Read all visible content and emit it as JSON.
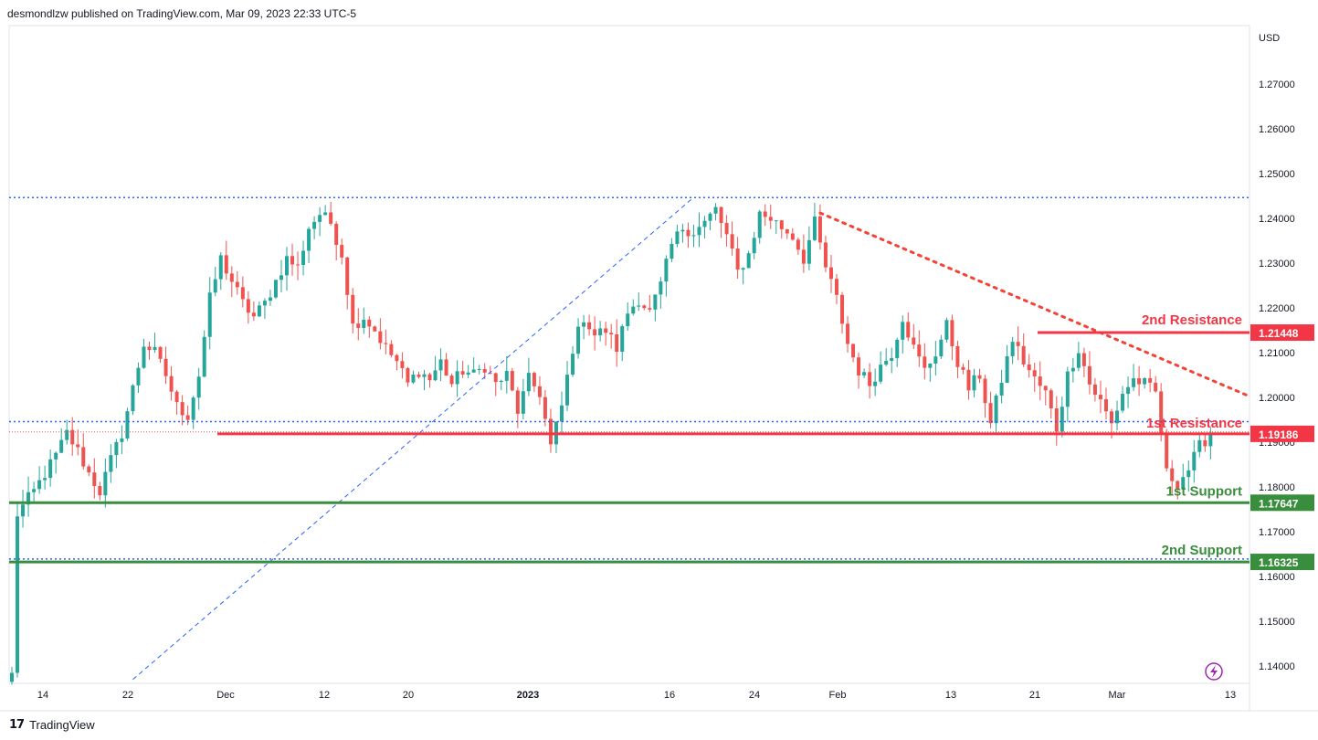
{
  "header": {
    "published_text": "desmondlzw published on TradingView.com, Mar 09, 2023 22:33 UTC-5"
  },
  "footer": {
    "brand": "TradingView",
    "logo_glyph": "17"
  },
  "icons": {
    "lightning": "lightning-bolt-icon"
  },
  "colors": {
    "up": "#26a69a",
    "down": "#ef5350",
    "resistance": "#f23645",
    "support": "#388e3c",
    "blue_dotted": "#2962ff",
    "red_trend": "#f44336"
  },
  "chart_data": {
    "type": "candlestick",
    "symbol_currency": "USD",
    "x_tick_labels": [
      "14",
      "22",
      "Dec",
      "12",
      "20",
      "2023",
      "16",
      "24",
      "Feb",
      "13",
      "21",
      "Mar",
      "13"
    ],
    "y_ticks": [
      1.27,
      1.26,
      1.25,
      1.24,
      1.23,
      1.22,
      1.21,
      1.2,
      1.19,
      1.18,
      1.17,
      1.16,
      1.15,
      1.14
    ],
    "y_tick_labels": [
      "1.27000",
      "1.26000",
      "1.25000",
      "1.24000",
      "1.23000",
      "1.22000",
      "1.21000",
      "1.20000",
      "1.19000",
      "1.18000",
      "1.17000",
      "1.16000",
      "1.15000",
      "1.14000"
    ],
    "ylim": [
      1.134,
      1.28
    ],
    "price_path": [
      [
        0,
        1.138
      ],
      [
        1,
        1.174
      ],
      [
        4,
        1.179
      ],
      [
        6,
        1.183
      ],
      [
        8,
        1.187
      ],
      [
        10,
        1.192
      ],
      [
        12,
        1.188
      ],
      [
        14,
        1.183
      ],
      [
        16,
        1.179
      ],
      [
        18,
        1.186
      ],
      [
        20,
        1.192
      ],
      [
        22,
        1.202
      ],
      [
        24,
        1.212
      ],
      [
        26,
        1.21
      ],
      [
        28,
        1.205
      ],
      [
        30,
        1.198
      ],
      [
        32,
        1.196
      ],
      [
        34,
        1.205
      ],
      [
        36,
        1.222
      ],
      [
        38,
        1.231
      ],
      [
        40,
        1.226
      ],
      [
        42,
        1.221
      ],
      [
        44,
        1.218
      ],
      [
        46,
        1.221
      ],
      [
        48,
        1.226
      ],
      [
        50,
        1.231
      ],
      [
        52,
        1.229
      ],
      [
        54,
        1.238
      ],
      [
        56,
        1.241
      ],
      [
        58,
        1.239
      ],
      [
        60,
        1.232
      ],
      [
        62,
        1.216
      ],
      [
        64,
        1.218
      ],
      [
        66,
        1.215
      ],
      [
        68,
        1.211
      ],
      [
        70,
        1.208
      ],
      [
        72,
        1.203
      ],
      [
        74,
        1.206
      ],
      [
        76,
        1.204
      ],
      [
        78,
        1.208
      ],
      [
        80,
        1.203
      ],
      [
        82,
        1.206
      ],
      [
        84,
        1.205
      ],
      [
        86,
        1.207
      ],
      [
        88,
        1.203
      ],
      [
        90,
        1.205
      ],
      [
        92,
        1.197
      ],
      [
        94,
        1.204
      ],
      [
        96,
        1.201
      ],
      [
        98,
        1.189
      ],
      [
        100,
        1.198
      ],
      [
        102,
        1.211
      ],
      [
        104,
        1.218
      ],
      [
        106,
        1.214
      ],
      [
        108,
        1.215
      ],
      [
        110,
        1.211
      ],
      [
        112,
        1.219
      ],
      [
        114,
        1.222
      ],
      [
        116,
        1.219
      ],
      [
        118,
        1.225
      ],
      [
        120,
        1.234
      ],
      [
        122,
        1.238
      ],
      [
        124,
        1.237
      ],
      [
        126,
        1.239
      ],
      [
        128,
        1.242
      ],
      [
        130,
        1.236
      ],
      [
        132,
        1.228
      ],
      [
        134,
        1.232
      ],
      [
        136,
        1.241
      ],
      [
        138,
        1.24
      ],
      [
        140,
        1.238
      ],
      [
        142,
        1.236
      ],
      [
        144,
        1.231
      ],
      [
        146,
        1.239
      ],
      [
        148,
        1.229
      ],
      [
        150,
        1.222
      ],
      [
        152,
        1.212
      ],
      [
        154,
        1.206
      ],
      [
        156,
        1.203
      ],
      [
        158,
        1.207
      ],
      [
        160,
        1.21
      ],
      [
        162,
        1.218
      ],
      [
        164,
        1.211
      ],
      [
        166,
        1.206
      ],
      [
        168,
        1.21
      ],
      [
        170,
        1.216
      ],
      [
        172,
        1.208
      ],
      [
        174,
        1.202
      ],
      [
        176,
        1.205
      ],
      [
        178,
        1.194
      ],
      [
        180,
        1.204
      ],
      [
        182,
        1.213
      ],
      [
        184,
        1.208
      ],
      [
        186,
        1.204
      ],
      [
        188,
        1.201
      ],
      [
        190,
        1.193
      ],
      [
        192,
        1.205
      ],
      [
        194,
        1.211
      ],
      [
        196,
        1.203
      ],
      [
        198,
        1.199
      ],
      [
        200,
        1.194
      ],
      [
        202,
        1.201
      ],
      [
        204,
        1.204
      ],
      [
        206,
        1.203
      ],
      [
        208,
        1.201
      ],
      [
        210,
        1.183
      ],
      [
        212,
        1.181
      ],
      [
        214,
        1.184
      ],
      [
        216,
        1.189
      ],
      [
        218,
        1.192
      ]
    ],
    "levels": [
      {
        "name": "2nd Resistance",
        "value": 1.21448,
        "label": "1.21448",
        "kind": "resistance"
      },
      {
        "name": "1st Resistance",
        "value": 1.19186,
        "label": "1.19186",
        "kind": "resistance"
      },
      {
        "name": "1st Support",
        "value": 1.17647,
        "label": "1.17647",
        "kind": "support"
      },
      {
        "name": "2nd Support",
        "value": 1.16325,
        "label": "1.16325",
        "kind": "support"
      }
    ],
    "horizontal_dotted_lines": [
      1.24465,
      1.1946,
      1.1639
    ],
    "current_price_dotted": 1.1923,
    "blue_trendline": [
      [
        22,
        1.137
      ],
      [
        124,
        1.2447
      ]
    ],
    "red_trendline": [
      [
        147,
        1.2412
      ],
      [
        216,
        1.2005
      ]
    ],
    "annotations": [
      "2nd Resistance",
      "1st Resistance",
      "1st Support",
      "2nd Support"
    ]
  }
}
